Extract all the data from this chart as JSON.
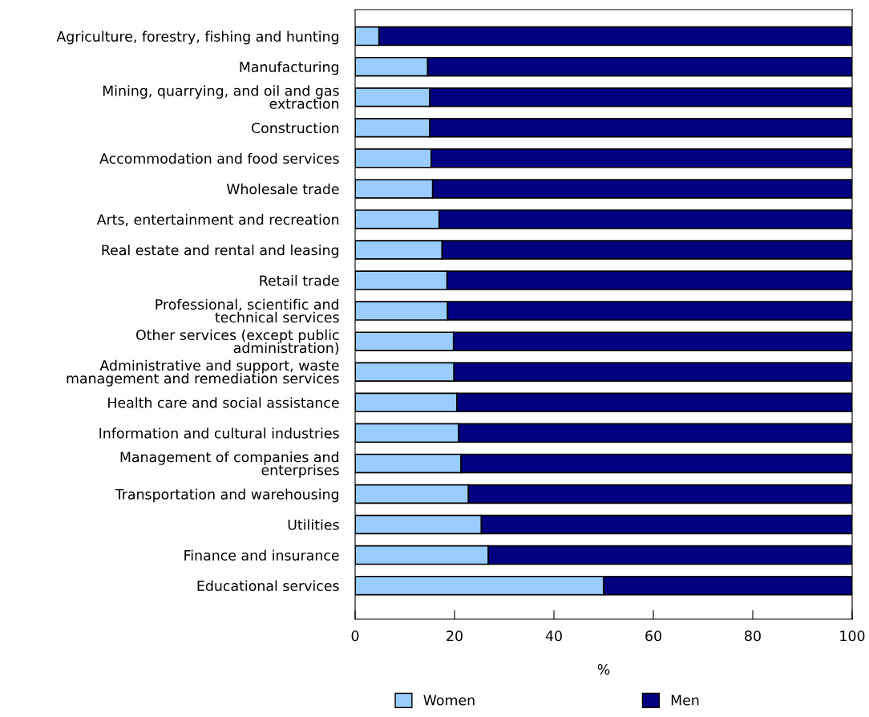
{
  "chart_data": {
    "type": "bar",
    "orientation": "horizontal",
    "stacked": true,
    "xlabel": "%",
    "categories": [
      "Agriculture, forestry, fishing and hunting",
      "Manufacturing",
      "Mining, quarrying, and oil and gas\nextraction",
      "Construction",
      "Accommodation and food services",
      "Wholesale trade",
      "Arts, entertainment and recreation",
      "Real estate and rental and leasing",
      "Retail trade",
      "Professional, scientific and\ntechnical services",
      "Other services (except public\nadministration)",
      "Administrative and support, waste\nmanagement and remediation services",
      "Health care and social assistance",
      "Information and cultural industries",
      "Management of companies and\nenterprises",
      "Transportation and warehousing",
      "Utilities",
      "Finance and insurance",
      "Educational services"
    ],
    "series": [
      {
        "name": "Women",
        "color": "#99ccff",
        "values": [
          4.8,
          14.6,
          15.0,
          15.0,
          15.3,
          15.6,
          16.9,
          17.5,
          18.5,
          18.6,
          19.8,
          19.9,
          20.5,
          20.8,
          21.3,
          22.8,
          25.4,
          26.8,
          50.0
        ]
      },
      {
        "name": "Men",
        "color": "#000080",
        "values": [
          95.2,
          85.4,
          85.0,
          85.0,
          84.7,
          84.4,
          83.1,
          82.5,
          81.5,
          81.4,
          80.2,
          80.1,
          79.5,
          79.2,
          78.7,
          77.2,
          74.6,
          73.2,
          50.0
        ]
      }
    ],
    "xlim": [
      0,
      100
    ],
    "xticks": [
      0,
      20,
      40,
      60,
      80,
      100
    ],
    "grid": false,
    "legend": "bottom"
  }
}
